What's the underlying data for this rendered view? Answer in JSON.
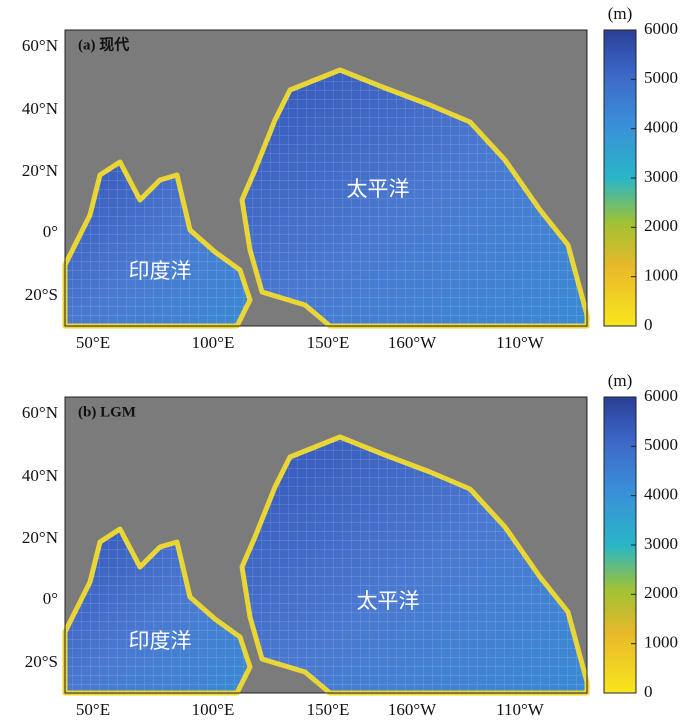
{
  "axes": {
    "lat_labels": [
      "60°N",
      "40°N",
      "20°N",
      "0°",
      "20°S"
    ],
    "lon_labels": [
      "50°E",
      "100°E",
      "150°E",
      "160°W",
      "110°W"
    ]
  },
  "panels": [
    {
      "label": "(a) 现代",
      "ocean_labels": [
        "印度洋",
        "太平洋"
      ],
      "colorbar_unit": "(m)",
      "colorbar_ticks": [
        0,
        1000,
        2000,
        3000,
        4000,
        5000,
        6000
      ]
    },
    {
      "label": "(b) LGM",
      "ocean_labels": [
        "印度洋",
        "太平洋"
      ],
      "colorbar_unit": "(m)",
      "colorbar_ticks": [
        0,
        1000,
        2000,
        3000,
        4000,
        5000,
        6000
      ]
    }
  ]
}
